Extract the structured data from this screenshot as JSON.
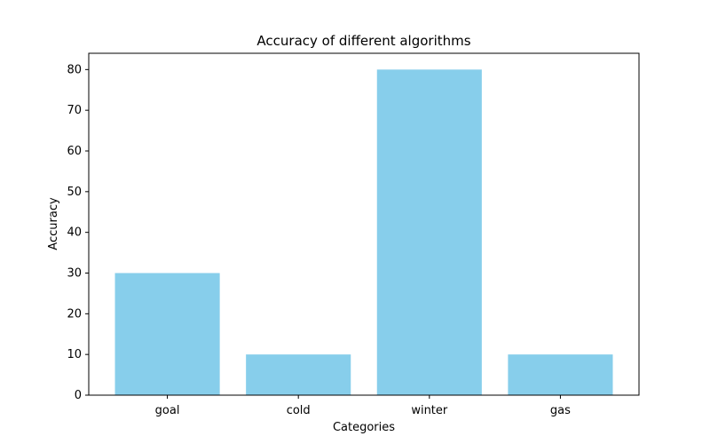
{
  "chart_data": {
    "type": "bar",
    "title": "Accuracy of different algorithms",
    "xlabel": "Categories",
    "ylabel": "Accuracy",
    "categories": [
      "goal",
      "cold",
      "winter",
      "gas"
    ],
    "values": [
      30,
      10,
      80,
      10
    ],
    "ylim": [
      0,
      84
    ],
    "yticks": [
      0,
      10,
      20,
      30,
      40,
      50,
      60,
      70,
      80
    ],
    "bar_color": "#87ceeb",
    "grid": false,
    "legend": "none"
  }
}
